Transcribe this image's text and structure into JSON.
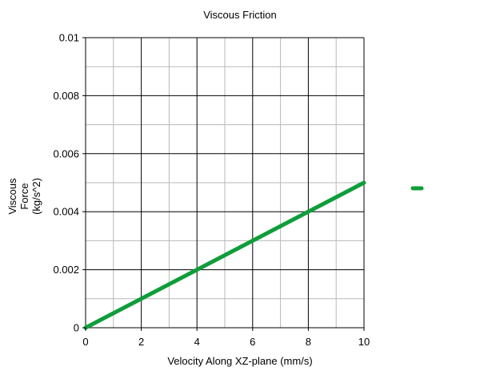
{
  "chart_data": {
    "type": "line",
    "title": "Viscous Friction",
    "xlabel": "Velocity Along XZ-plane (mm/s)",
    "ylabel_lines": [
      "Viscous",
      "Force",
      "(kg/s^2)"
    ],
    "xlim": [
      0,
      10
    ],
    "ylim": [
      0,
      0.01
    ],
    "x_ticks": [
      0,
      2,
      4,
      6,
      8,
      10
    ],
    "x_tick_labels": [
      "0",
      "2",
      "4",
      "6",
      "8",
      "10"
    ],
    "y_ticks": [
      0,
      0.002,
      0.004,
      0.006,
      0.008,
      0.01
    ],
    "y_tick_labels": [
      "0",
      "0.002",
      "0.004",
      "0.006",
      "0.008",
      "0.01"
    ],
    "grid": true,
    "legend": "right",
    "series": [
      {
        "color": "#0f9d3a",
        "x": [
          0,
          10
        ],
        "y": [
          0,
          0.005
        ]
      }
    ],
    "colors": {
      "major_grid": "#000000",
      "minor_grid": "#b8b8b8"
    }
  }
}
